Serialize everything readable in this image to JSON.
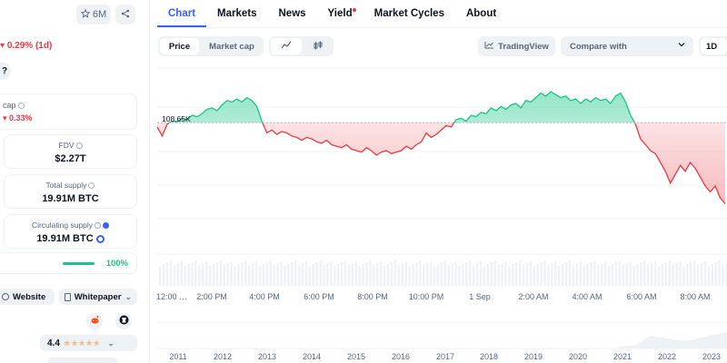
{
  "left_panel": {
    "watchlist_count": "6M",
    "change_1d": "0.29% (1d)",
    "question_fragment": "?",
    "market_cap_label": "cap",
    "market_cap_change": "0.33%",
    "fdv_label": "FDV",
    "fdv_value": "$2.27T",
    "total_supply_label": "Total supply",
    "total_supply_value": "19.91M BTC",
    "circulating_label": "Circulating supply",
    "circulating_value": "19.91M BTC",
    "supply_progress_pct": 100,
    "supply_progress_text": "100%",
    "website_label": "Website",
    "whitepaper_label": "Whitepaper",
    "rating_value": "4.4",
    "rating_stars": 4.4
  },
  "nav": {
    "tabs": [
      {
        "label": "Chart",
        "active": true
      },
      {
        "label": "Markets",
        "active": false
      },
      {
        "label": "News",
        "active": false
      },
      {
        "label": "Yield",
        "active": false,
        "badge": true
      },
      {
        "label": "Market Cycles",
        "active": false
      },
      {
        "label": "About",
        "active": false
      }
    ]
  },
  "controls": {
    "price_label": "Price",
    "market_cap_label": "Market cap",
    "tradingview_label": "TradingView",
    "compare_label": "Compare with",
    "range_label": "1D"
  },
  "chart_data": {
    "type": "area",
    "reference_label": "108.65K",
    "reference_value": 108650,
    "x_tick_labels": [
      "12:00 …",
      "2:00 PM",
      "4:00 PM",
      "6:00 PM",
      "8:00 PM",
      "10:00 PM",
      "1 Sep",
      "2:00 AM",
      "4:00 AM",
      "6:00 AM",
      "8:00 AM"
    ],
    "range_years": [
      "2011",
      "2012",
      "2013",
      "2014",
      "2015",
      "2016",
      "2017",
      "2018",
      "2019",
      "2020",
      "2021",
      "2022",
      "2023"
    ],
    "colors": {
      "up": "#16c784",
      "down": "#ea3943"
    },
    "series": [
      {
        "values": [
          108500,
          108200,
          108600,
          108700,
          108680,
          108800,
          108750,
          108900,
          108850,
          108950,
          109100,
          109150,
          109050,
          109250,
          109400,
          109350,
          109450,
          109350,
          109500,
          109400,
          109200,
          108700,
          108300,
          108400,
          108250,
          108350,
          108300,
          108200,
          108150,
          108050,
          108150,
          108100,
          108000,
          107950,
          108050,
          107900,
          107850,
          107800,
          107900,
          107750,
          107700,
          107650,
          107800,
          107700,
          107550,
          107650,
          107700,
          107600,
          107650,
          107700,
          107850,
          107750,
          107900,
          108000,
          108300,
          108150,
          108250,
          108400,
          108550,
          108500,
          108750,
          108800,
          108700,
          108900,
          108850,
          109000,
          108950,
          109150,
          109050,
          109200,
          109100,
          109250,
          109300,
          109150,
          109400,
          109350,
          109500,
          109650,
          109550,
          109700,
          109600,
          109500,
          109550,
          109400,
          109450,
          109300,
          109450,
          109350,
          109500,
          109400,
          109450,
          109300,
          109550,
          109650,
          109350,
          108900,
          108600,
          108100,
          107900,
          107700,
          107600,
          107300,
          107000,
          106600,
          106900,
          107200,
          107000,
          107300,
          107100,
          106800,
          106500,
          106300,
          106500,
          106100,
          105900
        ]
      }
    ]
  }
}
